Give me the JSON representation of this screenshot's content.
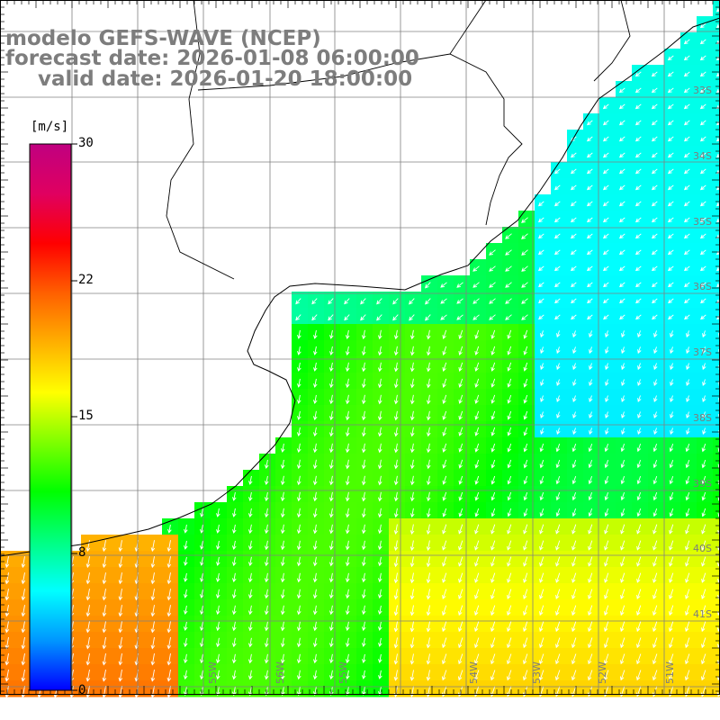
{
  "header": {
    "line1": "modelo GEFS-WAVE (NCEP)",
    "line2": "forecast date: 2026-01-08 06:00:00",
    "line3": "valid date: 2026-01-20 18:00:00"
  },
  "colorbar": {
    "unit": "[m/s]",
    "ticks": [
      "30",
      "22",
      "15",
      "8",
      "0"
    ],
    "tick_values": [
      30,
      22,
      15,
      8,
      0
    ],
    "colors": [
      "#0000ff",
      "#0096ff",
      "#00ffff",
      "#00ff80",
      "#00ff00",
      "#80ff00",
      "#ffff00",
      "#ffb000",
      "#ff6000",
      "#ff0000",
      "#e00060",
      "#c00080"
    ]
  },
  "map": {
    "lon_labels": [
      "55W",
      "56W",
      "55W",
      "54W",
      "53W",
      "52W",
      "51W"
    ],
    "lat_labels": [
      "33S",
      "34S",
      "35S",
      "36S",
      "37S",
      "38S",
      "39S",
      "40S",
      "41S"
    ],
    "variable": "wind speed with direction arrows",
    "colors": {
      "land": "#ffffff",
      "coast": "#000000",
      "grid": "#808080",
      "arrow": "#ffffff",
      "label": "#7d7d7d"
    }
  }
}
